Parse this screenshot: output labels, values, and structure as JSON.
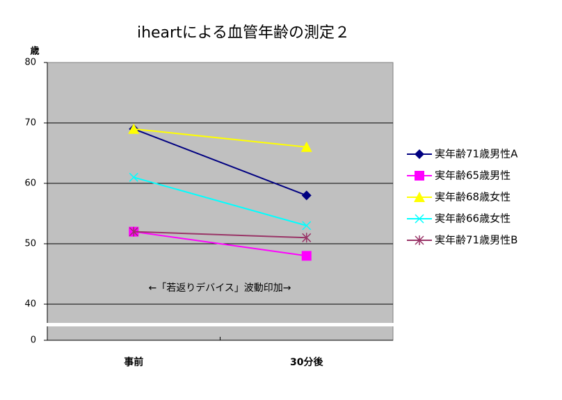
{
  "chart_data": {
    "type": "line",
    "title": "iheartによる血管年齢の測定２",
    "y_label": "歳",
    "annotation": "←「若返りデバイス」波動印加→",
    "categories": [
      "事前",
      "30分後"
    ],
    "series": [
      {
        "name": "実年齢71歳男性A",
        "color": "#000080",
        "marker": "diamond",
        "values": [
          69,
          58
        ]
      },
      {
        "name": "実年齢65歳男性",
        "color": "#ff00ff",
        "marker": "square",
        "values": [
          52,
          48
        ]
      },
      {
        "name": "実年齢68歳女性",
        "color": "#ffff00",
        "marker": "triangle",
        "values": [
          69,
          66
        ]
      },
      {
        "name": "実年齢66歳女性",
        "color": "#00ffff",
        "marker": "x",
        "values": [
          61,
          53
        ]
      },
      {
        "name": "実年齢71歳男性B",
        "color": "#993366",
        "marker": "star",
        "values": [
          52,
          51
        ]
      }
    ],
    "ylim": [
      0,
      80
    ],
    "yticks": [
      0,
      40,
      50,
      60,
      70,
      80
    ],
    "broken_axis": true,
    "grid": true,
    "legend": "right"
  }
}
